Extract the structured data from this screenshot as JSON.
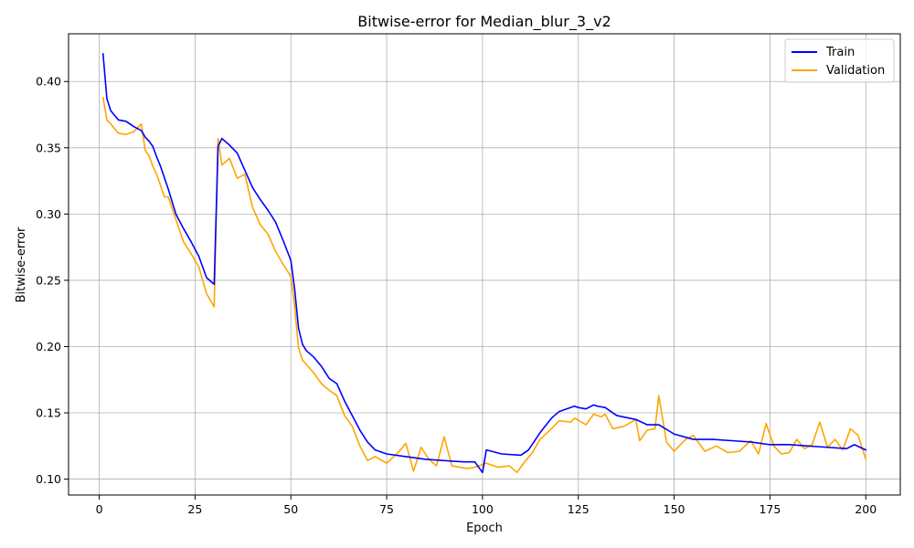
{
  "chart_data": {
    "type": "line",
    "title": "Bitwise-error for Median_blur_3_v2",
    "xlabel": "Epoch",
    "ylabel": "Bitwise-error",
    "xlim": [
      -8,
      209
    ],
    "ylim": [
      0.088,
      0.436
    ],
    "xticks": [
      0,
      25,
      50,
      75,
      100,
      125,
      150,
      175,
      200
    ],
    "yticks": [
      0.1,
      0.15,
      0.2,
      0.25,
      0.3,
      0.35,
      0.4
    ],
    "ytick_labels": [
      "0.10",
      "0.15",
      "0.20",
      "0.25",
      "0.30",
      "0.35",
      "0.40"
    ],
    "grid": true,
    "legend_position": "top-right",
    "series": [
      {
        "name": "Train",
        "color": "#0000ff",
        "x": [
          1,
          2,
          3,
          5,
          7,
          9,
          11,
          12,
          13,
          14,
          15,
          16,
          18,
          20,
          22,
          24,
          26,
          28,
          30,
          31,
          32,
          34,
          36,
          38,
          40,
          42,
          44,
          46,
          48,
          50,
          51,
          52,
          53,
          54,
          56,
          58,
          60,
          62,
          64,
          66,
          68,
          70,
          72,
          75,
          80,
          85,
          90,
          95,
          98,
          100,
          101,
          105,
          110,
          112,
          115,
          118,
          120,
          122,
          124,
          125,
          127,
          129,
          130,
          132,
          135,
          140,
          143,
          146,
          150,
          155,
          160,
          165,
          170,
          175,
          180,
          185,
          190,
          195,
          197,
          200
        ],
        "y": [
          0.421,
          0.387,
          0.378,
          0.371,
          0.37,
          0.366,
          0.363,
          0.358,
          0.355,
          0.351,
          0.343,
          0.336,
          0.319,
          0.3,
          0.289,
          0.279,
          0.268,
          0.252,
          0.247,
          0.351,
          0.357,
          0.352,
          0.346,
          0.333,
          0.32,
          0.311,
          0.303,
          0.294,
          0.28,
          0.265,
          0.243,
          0.214,
          0.202,
          0.197,
          0.192,
          0.185,
          0.176,
          0.172,
          0.159,
          0.148,
          0.137,
          0.128,
          0.122,
          0.119,
          0.117,
          0.115,
          0.114,
          0.113,
          0.113,
          0.105,
          0.122,
          0.119,
          0.118,
          0.122,
          0.135,
          0.146,
          0.151,
          0.153,
          0.155,
          0.154,
          0.153,
          0.156,
          0.155,
          0.154,
          0.148,
          0.145,
          0.141,
          0.141,
          0.134,
          0.13,
          0.13,
          0.129,
          0.128,
          0.126,
          0.126,
          0.125,
          0.124,
          0.123,
          0.126,
          0.122
        ]
      },
      {
        "name": "Validation",
        "color": "#ffa500",
        "x": [
          1,
          2,
          3,
          5,
          7,
          9,
          11,
          12,
          13,
          14,
          15,
          17,
          18,
          20,
          22,
          24,
          26,
          28,
          30,
          31,
          32,
          34,
          36,
          38,
          40,
          42,
          44,
          46,
          48,
          50,
          51,
          52,
          53,
          56,
          58,
          60,
          62,
          64,
          66,
          68,
          70,
          72,
          75,
          78,
          80,
          82,
          84,
          86,
          88,
          90,
          92,
          94,
          96,
          98,
          100,
          101,
          104,
          107,
          109,
          111,
          113,
          115,
          118,
          120,
          123,
          124,
          127,
          129,
          131,
          132,
          134,
          137,
          140,
          141,
          143,
          145,
          146,
          148,
          150,
          153,
          155,
          158,
          161,
          164,
          167,
          170,
          172,
          174,
          176,
          178,
          180,
          182,
          184,
          186,
          188,
          190,
          192,
          194,
          196,
          198,
          200
        ],
        "y": [
          0.388,
          0.371,
          0.368,
          0.361,
          0.36,
          0.362,
          0.368,
          0.348,
          0.344,
          0.336,
          0.33,
          0.313,
          0.313,
          0.296,
          0.279,
          0.27,
          0.26,
          0.24,
          0.23,
          0.357,
          0.337,
          0.342,
          0.327,
          0.33,
          0.305,
          0.292,
          0.285,
          0.272,
          0.262,
          0.253,
          0.23,
          0.199,
          0.19,
          0.18,
          0.172,
          0.167,
          0.163,
          0.148,
          0.14,
          0.125,
          0.114,
          0.117,
          0.112,
          0.12,
          0.127,
          0.106,
          0.124,
          0.115,
          0.11,
          0.132,
          0.11,
          0.109,
          0.108,
          0.109,
          0.111,
          0.112,
          0.109,
          0.11,
          0.105,
          0.113,
          0.12,
          0.13,
          0.138,
          0.144,
          0.143,
          0.146,
          0.141,
          0.149,
          0.147,
          0.149,
          0.138,
          0.14,
          0.145,
          0.129,
          0.137,
          0.138,
          0.163,
          0.128,
          0.121,
          0.13,
          0.133,
          0.121,
          0.125,
          0.12,
          0.121,
          0.129,
          0.119,
          0.142,
          0.125,
          0.119,
          0.12,
          0.13,
          0.123,
          0.126,
          0.143,
          0.124,
          0.13,
          0.122,
          0.138,
          0.133,
          0.115
        ]
      }
    ]
  }
}
